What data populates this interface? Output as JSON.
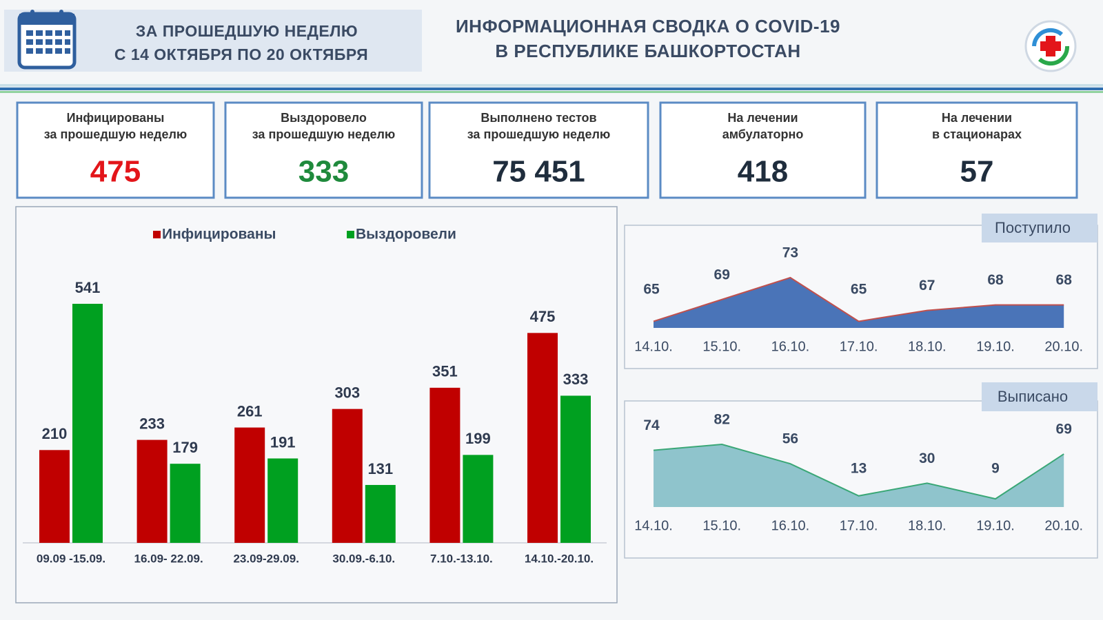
{
  "header": {
    "period": [
      "ЗА ПРОШЕДШУЮ НЕДЕЛЮ",
      "С 14 ОКТЯБРЯ ПО 20 ОКТЯБРЯ"
    ],
    "title": [
      "ИНФОРМАЦИОННАЯ СВОДКА О COVID-19",
      "В РЕСПУБЛИКЕ БАШКОРТОСТАН"
    ]
  },
  "cards": [
    {
      "label": [
        "Инфицированы",
        "за прошедшую неделю"
      ],
      "value": "475",
      "color": "#e3151a"
    },
    {
      "label": [
        "Выздоровело",
        "за прошедшую неделю"
      ],
      "value": "333",
      "color": "#1f8a3c"
    },
    {
      "label": [
        "Выполнено тестов",
        "за прошедшую неделю"
      ],
      "value": "75 451",
      "color": "#1f2d3d"
    },
    {
      "label": [
        "На лечении",
        "амбулаторно"
      ],
      "value": "418",
      "color": "#1f2d3d"
    },
    {
      "label": [
        "На лечении",
        "в стационарах"
      ],
      "value": "57",
      "color": "#1f2d3d"
    }
  ],
  "chart_data": [
    {
      "type": "bar",
      "categories": [
        "09.09 -15.09.",
        "16.09- 22.09.",
        "23.09-29.09.",
        "30.09.-6.10.",
        "7.10.-13.10.",
        "14.10.-20.10."
      ],
      "series": [
        {
          "name": "Инфицированы",
          "color": "#c00000",
          "values": [
            210,
            233,
            261,
            303,
            351,
            475
          ]
        },
        {
          "name": "Выздоровели",
          "color": "#00a020",
          "values": [
            541,
            179,
            191,
            131,
            199,
            333
          ]
        }
      ]
    },
    {
      "type": "area",
      "title": "Поступило",
      "categories": [
        "14.10.",
        "15.10.",
        "16.10.",
        "17.10.",
        "18.10.",
        "19.10.",
        "20.10."
      ],
      "values": [
        65,
        69,
        73,
        65,
        67,
        68,
        68
      ],
      "color": "#4a74b8",
      "line_color": "#c0504d"
    },
    {
      "type": "area",
      "title": "Выписано",
      "categories": [
        "14.10.",
        "15.10.",
        "16.10.",
        "17.10.",
        "18.10.",
        "19.10.",
        "20.10."
      ],
      "values": [
        74,
        82,
        56,
        13,
        30,
        9,
        69
      ],
      "color": "#8fc4cc",
      "line_color": "#3aa776"
    }
  ]
}
